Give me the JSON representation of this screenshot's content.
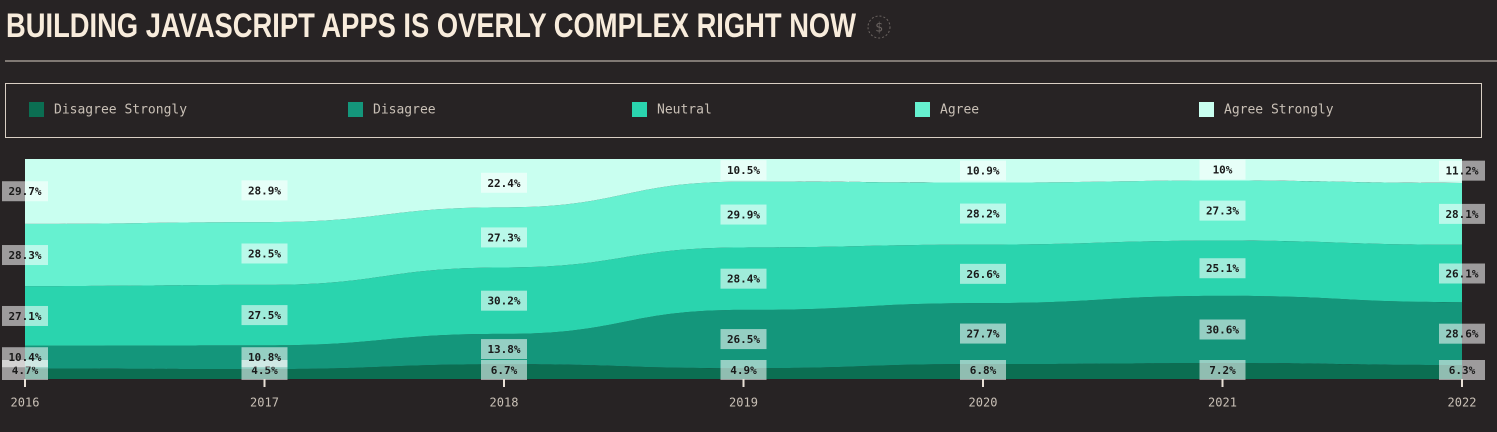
{
  "chart_data": {
    "type": "area",
    "stacked": true,
    "title": "BUILDING JAVASCRIPT APPS IS OVERLY COMPLEX RIGHT NOW",
    "x": [
      2016,
      2017,
      2018,
      2019,
      2020,
      2021,
      2022
    ],
    "xlim": [
      2016,
      2022
    ],
    "xticks": [
      2016,
      2017,
      2018,
      2019,
      2020,
      2021,
      2022
    ],
    "ylim": [
      0,
      100
    ],
    "series": [
      {
        "name": "Disagree Strongly",
        "color": "#0b6e52",
        "values": [
          4.7,
          4.5,
          6.7,
          4.9,
          6.8,
          7.2,
          6.3
        ],
        "value_labels": [
          "4.7%",
          "4.5%",
          "6.7%",
          "4.9%",
          "6.8%",
          "7.2%",
          "6.3%"
        ]
      },
      {
        "name": "Disagree",
        "color": "#14967b",
        "values": [
          10.4,
          10.8,
          13.8,
          26.5,
          27.7,
          30.6,
          28.6
        ],
        "value_labels": [
          "10.4%",
          "10.8%",
          "13.8%",
          "26.5%",
          "27.7%",
          "30.6%",
          "28.6%"
        ]
      },
      {
        "name": "Neutral",
        "color": "#2ad4ae",
        "values": [
          27.1,
          27.5,
          30.2,
          28.4,
          26.6,
          25.1,
          26.1
        ],
        "value_labels": [
          "27.1%",
          "27.5%",
          "30.2%",
          "28.4%",
          "26.6%",
          "25.1%",
          "26.1%"
        ]
      },
      {
        "name": "Agree",
        "color": "#66f1d0",
        "values": [
          28.3,
          28.5,
          27.3,
          29.9,
          28.2,
          27.3,
          28.1
        ],
        "value_labels": [
          "28.3%",
          "28.5%",
          "27.3%",
          "29.9%",
          "28.2%",
          "27.3%",
          "28.1%"
        ]
      },
      {
        "name": "Agree Strongly",
        "color": "#c9fff0",
        "values": [
          29.7,
          28.9,
          22.4,
          10.5,
          10.9,
          10,
          11.2
        ],
        "value_labels": [
          "29.7%",
          "28.9%",
          "22.4%",
          "10.5%",
          "10.9%",
          "10%",
          "11.2%"
        ]
      }
    ]
  }
}
